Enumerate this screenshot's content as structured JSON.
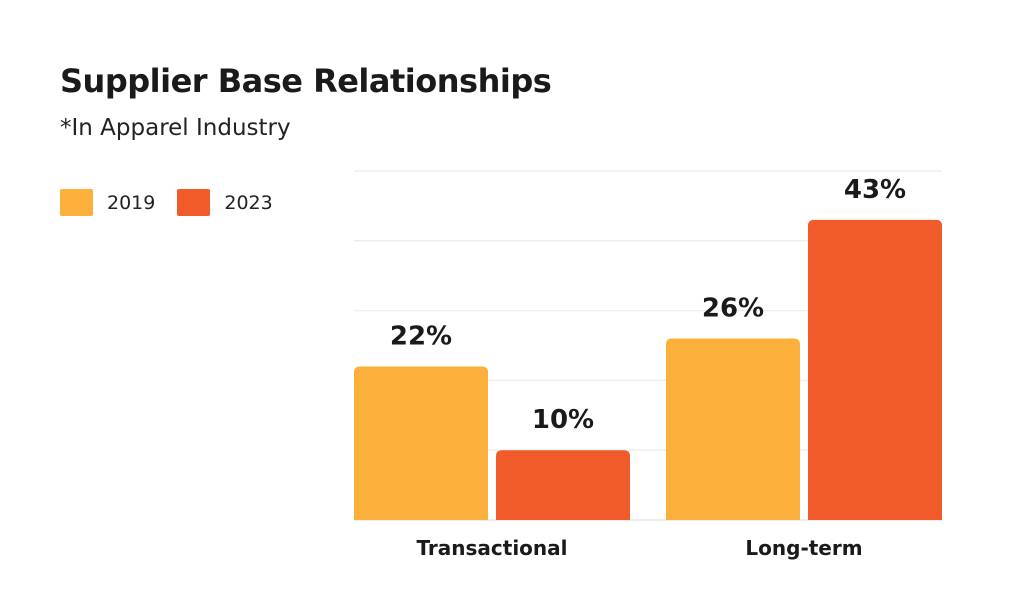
{
  "chart_data": {
    "type": "bar",
    "title": "Supplier Base Relationships",
    "subtitle": "*In Apparel Industry",
    "categories": [
      "Transactional",
      "Long-term"
    ],
    "series": [
      {
        "name": "2019",
        "values": [
          22,
          26
        ],
        "labels": [
          "22%",
          "26%"
        ],
        "color": "#FBB03B"
      },
      {
        "name": "2023",
        "values": [
          10,
          43
        ],
        "labels": [
          "10%",
          "43%"
        ],
        "color": "#F15A29"
      }
    ],
    "ylim": [
      0,
      50
    ],
    "grid": true,
    "legend_position": "top-left"
  }
}
